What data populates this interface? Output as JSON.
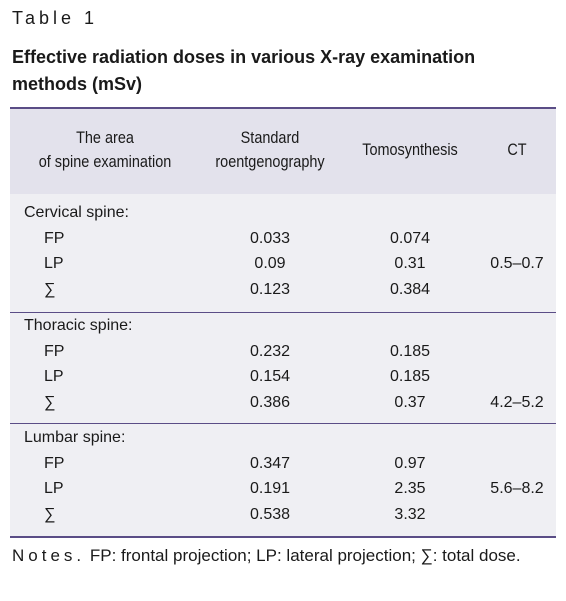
{
  "label": "Table 1",
  "title": "Effective radiation doses in various X-ray examination methods (mSv)",
  "table": {
    "header": [
      [
        "The area",
        "of spine examination"
      ],
      [
        "Standard",
        "roentgenography"
      ],
      [
        "Tomosynthesis"
      ],
      [
        "CT"
      ]
    ],
    "groups": [
      {
        "name": "Cervical spine:",
        "rows": [
          [
            "FP",
            "0.033",
            "0.074"
          ],
          [
            "LP",
            "0.09",
            "0.31",
            "0.5–0.7"
          ],
          [
            "∑",
            "0.123",
            "0.384"
          ]
        ]
      },
      {
        "name": "Thoracic spine:",
        "rows": [
          [
            "FP",
            "0.232",
            "0.185"
          ],
          [
            "LP",
            "0.154",
            "0.185"
          ],
          [
            "∑",
            "0.386",
            "0.37",
            "4.2–5.2"
          ]
        ]
      },
      {
        "name": "Lumbar spine:",
        "rows": [
          [
            "FP",
            "0.347",
            "0.97"
          ],
          [
            "LP",
            "0.191",
            "2.35",
            "5.6–8.2"
          ],
          [
            "∑",
            "0.538",
            "3.32"
          ]
        ]
      }
    ]
  },
  "notes": {
    "lead": "Notes.",
    "text": "FP: frontal projection; LP: lateral projection; ∑: total dose."
  }
}
